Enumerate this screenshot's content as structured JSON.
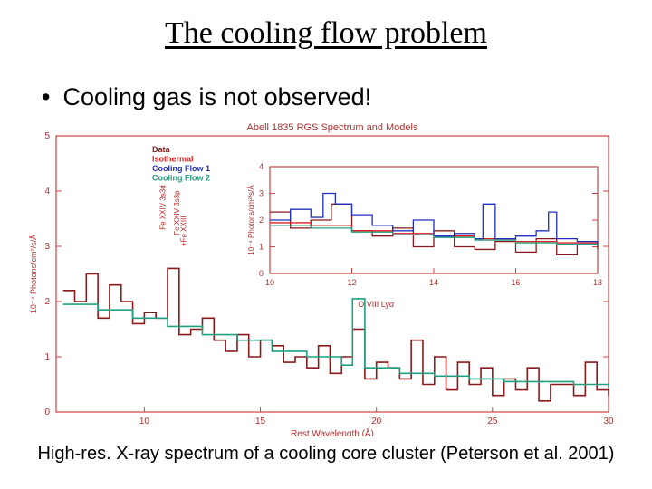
{
  "slide": {
    "title": "The cooling flow problem",
    "bullet": "Cooling gas is not observed!",
    "caption": "High-res. X-ray spectrum of a cooling core cluster (Peterson et al. 2001)"
  },
  "chart_data": [
    {
      "type": "line",
      "title": "Abell 1835 RGS Spectrum and Models",
      "xlabel": "Rest Wavelength (Å)",
      "ylabel": "10⁻⁴ Photons/cm²/s/Å",
      "xlim": [
        6.2,
        30
      ],
      "ylim": [
        0,
        5
      ],
      "xticks": [
        10,
        15,
        20,
        25,
        30
      ],
      "yticks": [
        0,
        1,
        2,
        3,
        4,
        5
      ],
      "grid": false,
      "legend": "top-left",
      "series": [
        {
          "name": "Data",
          "color": "#8b1a1a",
          "x": [
            6.5,
            7,
            7.5,
            8,
            8.5,
            9,
            9.5,
            10,
            10.5,
            11,
            11.5,
            12,
            12.5,
            13,
            13.5,
            14,
            14.5,
            15,
            15.5,
            16,
            16.5,
            17,
            17.5,
            18,
            18.5,
            18.97,
            19.5,
            20,
            20.5,
            21,
            21.5,
            22,
            22.5,
            23,
            23.5,
            24,
            24.5,
            25,
            25.5,
            26,
            26.5,
            27,
            27.5,
            28,
            28.5,
            29,
            29.5,
            30
          ],
          "y": [
            2.2,
            2.0,
            2.5,
            1.7,
            2.3,
            2.0,
            1.6,
            1.8,
            1.7,
            2.6,
            1.4,
            1.5,
            1.7,
            1.3,
            1.1,
            1.4,
            1.0,
            1.3,
            1.2,
            0.9,
            1.0,
            0.8,
            1.2,
            0.7,
            1.0,
            1.5,
            0.6,
            0.9,
            0.8,
            0.6,
            1.3,
            0.5,
            1.0,
            0.4,
            0.9,
            0.5,
            0.8,
            0.3,
            0.6,
            0.4,
            0.8,
            0.2,
            0.5,
            0.5,
            0.3,
            0.9,
            0.4,
            0.3
          ]
        },
        {
          "name": "Isothermal",
          "color": "#e02020",
          "x": [],
          "y": []
        },
        {
          "name": "Cooling Flow 1",
          "color": "#2030c0",
          "x": [],
          "y": []
        },
        {
          "name": "Cooling Flow 2",
          "color": "#20a080",
          "x": [
            6.5,
            8,
            9.5,
            11,
            12.5,
            14,
            15.5,
            17,
            18.5,
            18.97,
            19.5,
            21,
            22.5,
            24,
            25.5,
            27,
            28.5,
            30
          ],
          "y": [
            1.95,
            1.85,
            1.7,
            1.55,
            1.4,
            1.3,
            1.1,
            1.0,
            0.85,
            2.05,
            0.8,
            0.7,
            0.65,
            0.6,
            0.55,
            0.55,
            0.5,
            0.45
          ]
        }
      ],
      "annotations": [
        {
          "text": "Fe XXIV 3s3d",
          "x": 10.9,
          "y": 3.3
        },
        {
          "text": "Fe XXIV 3s3p",
          "x": 11.5,
          "y": 3.2
        },
        {
          "text": "+Fe XXIII",
          "x": 11.8,
          "y": 3.0
        },
        {
          "text": "O VIII Lyα",
          "x": 19.2,
          "y": 1.9
        }
      ]
    },
    {
      "type": "line",
      "title": "",
      "xlabel": "",
      "ylabel": "10⁻⁴ Photons/cm²/s/Å",
      "xlim": [
        10,
        18
      ],
      "ylim": [
        0,
        4
      ],
      "xticks": [
        10,
        12,
        14,
        16,
        18
      ],
      "yticks": [
        0,
        1,
        2,
        3,
        4
      ],
      "series": [
        {
          "name": "Data",
          "color": "#8b1a1a",
          "x": [
            10,
            10.5,
            11,
            11.5,
            12,
            12.5,
            13,
            13.5,
            14,
            14.5,
            15,
            15.5,
            16,
            16.5,
            17,
            17.5,
            18
          ],
          "y": [
            2.3,
            1.7,
            2.0,
            2.6,
            1.6,
            1.4,
            1.7,
            1.0,
            1.6,
            1.0,
            0.9,
            1.2,
            0.8,
            1.3,
            0.7,
            1.1,
            0.9
          ]
        },
        {
          "name": "Isothermal",
          "color": "#e02020",
          "x": [
            10,
            11,
            12,
            13,
            14,
            15,
            16,
            17,
            18
          ],
          "y": [
            1.9,
            1.8,
            1.6,
            1.5,
            1.4,
            1.3,
            1.2,
            1.15,
            1.1
          ]
        },
        {
          "name": "Cooling Flow 1",
          "color": "#2030c0",
          "x": [
            10,
            10.5,
            11,
            11.3,
            11.6,
            12,
            12.5,
            13,
            13.5,
            14,
            14.5,
            15,
            15.2,
            15.5,
            16,
            16.5,
            16.8,
            17,
            17.5,
            18
          ],
          "y": [
            2.0,
            2.4,
            2.1,
            3.0,
            2.6,
            2.2,
            1.8,
            1.6,
            2.0,
            1.4,
            1.5,
            1.3,
            2.6,
            1.3,
            1.4,
            1.6,
            2.3,
            1.3,
            1.2,
            1.1
          ]
        },
        {
          "name": "Cooling Flow 2",
          "color": "#20a080",
          "x": [
            10,
            11,
            12,
            13,
            14,
            15,
            16,
            17,
            18
          ],
          "y": [
            1.8,
            1.7,
            1.55,
            1.45,
            1.35,
            1.25,
            1.15,
            1.1,
            1.05
          ]
        }
      ]
    }
  ]
}
